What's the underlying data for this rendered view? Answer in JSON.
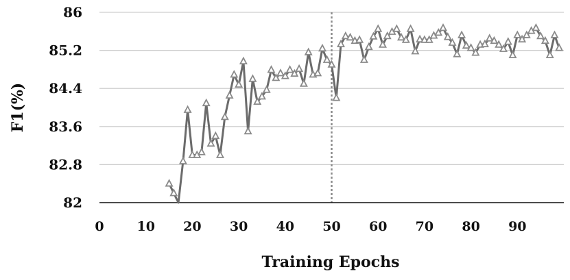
{
  "chart_data": {
    "type": "line",
    "title": "",
    "xlabel": "Training Epochs",
    "ylabel": "F1(%)",
    "ylim": [
      82,
      86
    ],
    "xlim": [
      0,
      100
    ],
    "y_ticks": [
      82,
      82.8,
      83.6,
      84.4,
      85.2,
      86
    ],
    "y_tick_labels": [
      "82",
      "82.8",
      "83.6",
      "84.4",
      "85.2",
      "86"
    ],
    "x_ticks": [
      0,
      10,
      20,
      30,
      40,
      50,
      60,
      70,
      80,
      90
    ],
    "x_tick_labels": [
      "0",
      "10",
      "20",
      "30",
      "40",
      "50",
      "60",
      "70",
      "80",
      "90"
    ],
    "grid": "horizontal",
    "vertical_marker_x": 50,
    "marker": "triangle",
    "line_color": "#6b6b6b",
    "grid_color": "#cfcfcf",
    "marker_line_color": "#8a8a8a",
    "series": [
      {
        "x": [
          15,
          16,
          17,
          18,
          19,
          20,
          21,
          22,
          23,
          24,
          25,
          26,
          27,
          28,
          29,
          30,
          31,
          32,
          33,
          34,
          35,
          36,
          37,
          38,
          39,
          40,
          41,
          42,
          43,
          44,
          45,
          46,
          47,
          48,
          49,
          50,
          51,
          52,
          53,
          54,
          55,
          56,
          57,
          58,
          59,
          60,
          61,
          62,
          63,
          64,
          65,
          66,
          67,
          68,
          69,
          70,
          71,
          72,
          73,
          74,
          75,
          76,
          77,
          78,
          79,
          80,
          81,
          82,
          83,
          84,
          85,
          86,
          87,
          88,
          89,
          90,
          91,
          92,
          93,
          94,
          95,
          96,
          97,
          98,
          99
        ],
        "values": [
          82.4,
          82.2,
          82.0,
          82.87,
          83.95,
          83.0,
          83.0,
          83.06,
          84.09,
          83.24,
          83.4,
          83.0,
          83.8,
          84.25,
          84.69,
          84.48,
          84.97,
          83.5,
          84.6,
          84.12,
          84.23,
          84.37,
          84.79,
          84.62,
          84.72,
          84.66,
          84.79,
          84.71,
          84.81,
          84.5,
          85.16,
          84.69,
          84.72,
          85.24,
          85.0,
          84.9,
          84.2,
          85.33,
          85.5,
          85.47,
          85.4,
          85.42,
          85.0,
          85.27,
          85.49,
          85.65,
          85.32,
          85.5,
          85.59,
          85.65,
          85.47,
          85.42,
          85.65,
          85.18,
          85.43,
          85.42,
          85.42,
          85.51,
          85.57,
          85.67,
          85.48,
          85.36,
          85.12,
          85.52,
          85.3,
          85.25,
          85.15,
          85.32,
          85.33,
          85.45,
          85.4,
          85.32,
          85.23,
          85.38,
          85.1,
          85.52,
          85.43,
          85.52,
          85.61,
          85.67,
          85.5,
          85.4,
          85.1,
          85.52,
          85.25
        ]
      }
    ]
  }
}
